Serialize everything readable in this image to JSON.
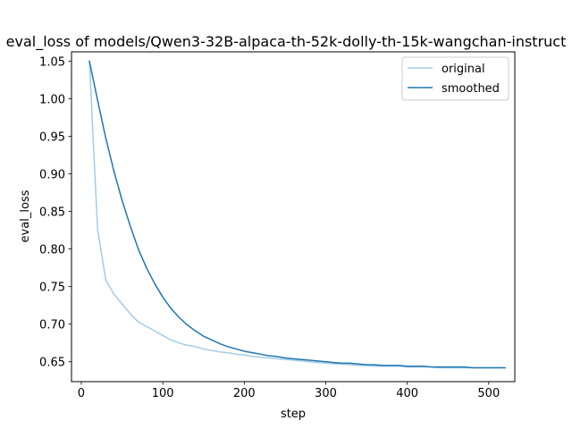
{
  "chart_data": {
    "type": "line",
    "title": "eval_loss of models/Qwen3-32B-alpaca-th-52k-dolly-th-15k-wangchan-instruct",
    "xlabel": "step",
    "ylabel": "eval_loss",
    "xlim": [
      -12,
      532
    ],
    "ylim": [
      0.6235,
      1.0625
    ],
    "xticks": [
      0,
      100,
      200,
      300,
      400,
      500
    ],
    "yticks": [
      0.65,
      0.7,
      0.75,
      0.8,
      0.85,
      0.9,
      0.95,
      1.0,
      1.05
    ],
    "legend_position": "top-right",
    "grid": false,
    "series": [
      {
        "name": "original",
        "color": "#a6cbe3",
        "x": [
          10,
          20,
          30,
          40,
          50,
          60,
          70,
          80,
          90,
          100,
          110,
          120,
          130,
          140,
          150,
          160,
          170,
          180,
          190,
          200,
          210,
          220,
          230,
          240,
          250,
          260,
          270,
          280,
          290,
          300,
          310,
          320,
          330,
          340,
          350,
          360,
          370,
          380,
          390,
          400,
          410,
          420,
          430,
          440,
          450,
          460,
          470,
          480,
          490,
          500,
          510,
          520
        ],
        "y": [
          1.05,
          0.826,
          0.759,
          0.74,
          0.727,
          0.714,
          0.703,
          0.697,
          0.691,
          0.685,
          0.679,
          0.675,
          0.672,
          0.67,
          0.667,
          0.665,
          0.663,
          0.662,
          0.66,
          0.659,
          0.657,
          0.656,
          0.655,
          0.654,
          0.653,
          0.652,
          0.651,
          0.65,
          0.649,
          0.648,
          0.647,
          0.647,
          0.646,
          0.645,
          0.645,
          0.644,
          0.644,
          0.644,
          0.644,
          0.643,
          0.643,
          0.643,
          0.643,
          0.642,
          0.642,
          0.642,
          0.642,
          0.642,
          0.642,
          0.642,
          0.642,
          0.642
        ]
      },
      {
        "name": "smoothed",
        "color": "#1f77b4",
        "x": [
          10,
          20,
          30,
          40,
          50,
          60,
          70,
          80,
          90,
          100,
          110,
          120,
          130,
          140,
          150,
          160,
          170,
          180,
          190,
          200,
          210,
          220,
          230,
          240,
          250,
          260,
          270,
          280,
          290,
          300,
          310,
          320,
          330,
          340,
          350,
          360,
          370,
          380,
          390,
          400,
          410,
          420,
          430,
          440,
          450,
          460,
          470,
          480,
          490,
          500,
          510,
          520
        ],
        "y": [
          1.05,
          0.998,
          0.948,
          0.904,
          0.865,
          0.831,
          0.8,
          0.775,
          0.754,
          0.736,
          0.721,
          0.709,
          0.699,
          0.691,
          0.684,
          0.679,
          0.674,
          0.67,
          0.667,
          0.664,
          0.662,
          0.66,
          0.658,
          0.657,
          0.655,
          0.654,
          0.653,
          0.652,
          0.651,
          0.65,
          0.649,
          0.648,
          0.648,
          0.647,
          0.646,
          0.646,
          0.645,
          0.645,
          0.645,
          0.644,
          0.644,
          0.644,
          0.643,
          0.643,
          0.643,
          0.643,
          0.643,
          0.642,
          0.642,
          0.642,
          0.642,
          0.642
        ]
      }
    ]
  }
}
